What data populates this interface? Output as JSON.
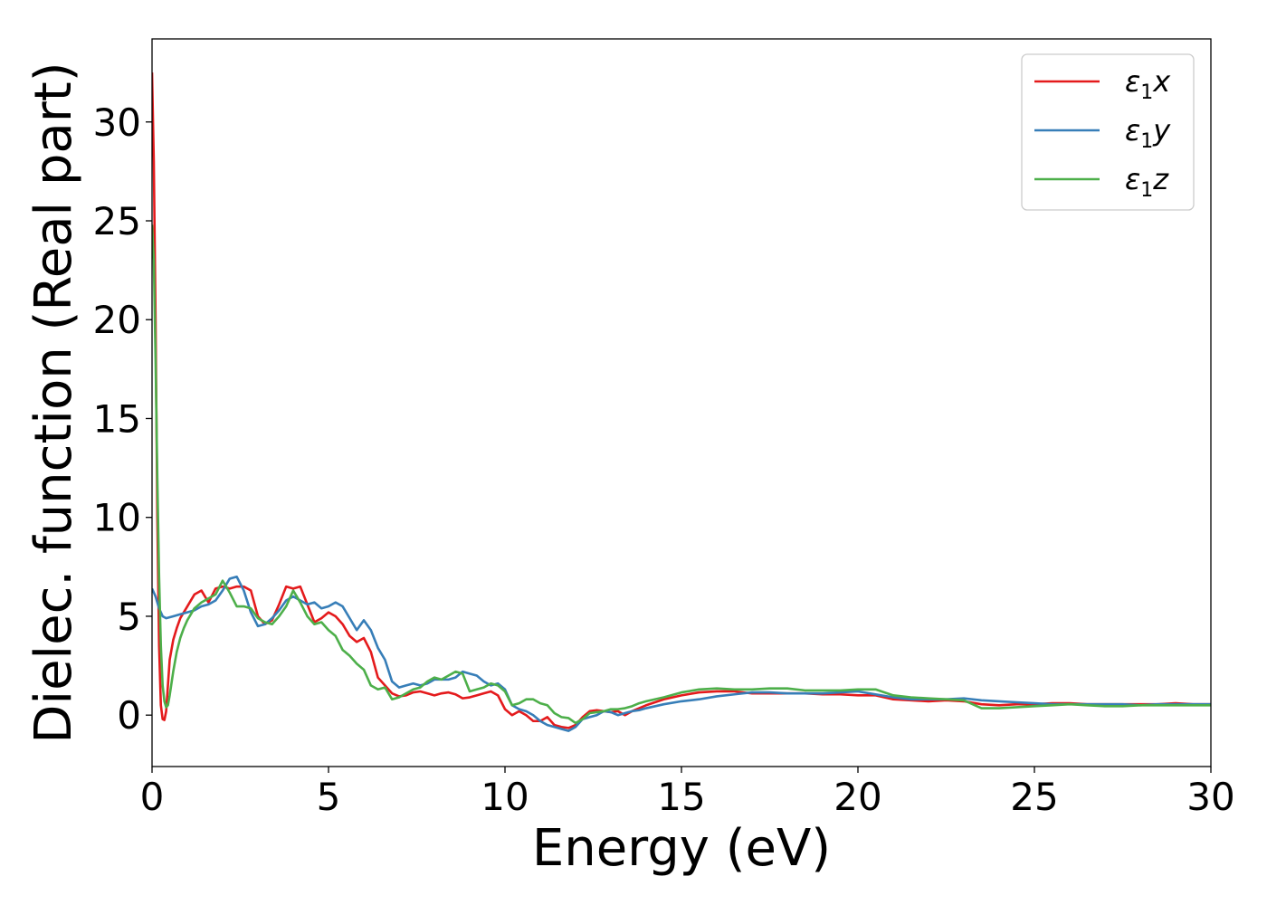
{
  "chart_data": {
    "type": "line",
    "title": "",
    "xlabel": "Energy (eV)",
    "ylabel": "Dielec. function (Real part)",
    "xlim": [
      0,
      30
    ],
    "ylim": [
      -2.6,
      34.2
    ],
    "xticks": [
      "0",
      "5",
      "10",
      "15",
      "20",
      "25",
      "30"
    ],
    "yticks": [
      "0",
      "5",
      "10",
      "15",
      "20",
      "25",
      "30"
    ],
    "grid": false,
    "legend_position": "upper-right",
    "series": [
      {
        "name": "ε₁x",
        "legend_main": "ε",
        "legend_sub": "1",
        "legend_var": "x",
        "color": "#e41a1c",
        "x": [
          0.0,
          0.05,
          0.1,
          0.15,
          0.2,
          0.25,
          0.3,
          0.35,
          0.4,
          0.45,
          0.5,
          0.6,
          0.7,
          0.8,
          0.9,
          1.0,
          1.2,
          1.4,
          1.6,
          1.8,
          2.0,
          2.2,
          2.4,
          2.6,
          2.8,
          3.0,
          3.2,
          3.4,
          3.6,
          3.8,
          4.0,
          4.2,
          4.4,
          4.6,
          4.8,
          5.0,
          5.2,
          5.4,
          5.6,
          5.8,
          6.0,
          6.2,
          6.4,
          6.6,
          6.8,
          7.0,
          7.2,
          7.4,
          7.6,
          7.8,
          8.0,
          8.2,
          8.4,
          8.6,
          8.8,
          9.0,
          9.2,
          9.4,
          9.6,
          9.8,
          10.0,
          10.2,
          10.4,
          10.6,
          10.8,
          11.0,
          11.2,
          11.4,
          11.6,
          11.8,
          12.0,
          12.2,
          12.4,
          12.6,
          12.8,
          13.0,
          13.2,
          13.4,
          13.6,
          13.8,
          14.0,
          14.5,
          15.0,
          15.5,
          16.0,
          16.5,
          17.0,
          17.5,
          18.0,
          18.5,
          19.0,
          19.5,
          20.0,
          20.5,
          21.0,
          21.5,
          22.0,
          22.5,
          23.0,
          23.5,
          24.0,
          24.5,
          25.0,
          25.5,
          26.0,
          26.5,
          27.0,
          27.5,
          28.0,
          28.5,
          29.0,
          29.5,
          30.0
        ],
        "y": [
          32.5,
          28.0,
          20.0,
          10.0,
          3.5,
          0.5,
          -0.2,
          -0.25,
          0.2,
          1.5,
          2.8,
          3.8,
          4.4,
          4.9,
          5.2,
          5.5,
          6.1,
          6.3,
          5.7,
          6.4,
          6.5,
          6.4,
          6.5,
          6.5,
          6.3,
          5.0,
          4.6,
          4.8,
          5.6,
          6.5,
          6.4,
          6.5,
          5.6,
          4.7,
          4.9,
          5.2,
          5.0,
          4.6,
          4.0,
          3.7,
          3.9,
          3.2,
          1.9,
          1.5,
          1.1,
          0.95,
          1.0,
          1.15,
          1.2,
          1.1,
          1.0,
          1.1,
          1.15,
          1.05,
          0.85,
          0.9,
          1.0,
          1.1,
          1.2,
          1.0,
          0.3,
          0.0,
          0.2,
          0.0,
          -0.3,
          -0.3,
          -0.1,
          -0.5,
          -0.6,
          -0.65,
          -0.5,
          -0.1,
          0.2,
          0.25,
          0.2,
          0.15,
          0.2,
          0.0,
          0.2,
          0.35,
          0.5,
          0.8,
          1.0,
          1.15,
          1.2,
          1.2,
          1.1,
          1.1,
          1.1,
          1.1,
          1.05,
          1.05,
          1.0,
          1.0,
          0.8,
          0.75,
          0.7,
          0.75,
          0.7,
          0.55,
          0.5,
          0.55,
          0.55,
          0.6,
          0.6,
          0.55,
          0.55,
          0.55,
          0.55,
          0.55,
          0.6,
          0.55,
          0.55
        ]
      },
      {
        "name": "ε₁y",
        "legend_main": "ε",
        "legend_sub": "1",
        "legend_var": "y",
        "color": "#377eb8",
        "x": [
          0.0,
          0.1,
          0.2,
          0.3,
          0.4,
          0.6,
          0.8,
          1.0,
          1.2,
          1.4,
          1.6,
          1.8,
          2.0,
          2.2,
          2.4,
          2.6,
          2.8,
          3.0,
          3.2,
          3.4,
          3.6,
          3.8,
          4.0,
          4.2,
          4.4,
          4.6,
          4.8,
          5.0,
          5.2,
          5.4,
          5.6,
          5.8,
          6.0,
          6.2,
          6.4,
          6.6,
          6.8,
          7.0,
          7.2,
          7.4,
          7.6,
          7.8,
          8.0,
          8.2,
          8.4,
          8.6,
          8.8,
          9.0,
          9.2,
          9.4,
          9.6,
          9.8,
          10.0,
          10.2,
          10.4,
          10.6,
          10.8,
          11.0,
          11.2,
          11.4,
          11.6,
          11.8,
          12.0,
          12.2,
          12.4,
          12.6,
          12.8,
          13.0,
          13.2,
          13.4,
          13.6,
          13.8,
          14.0,
          14.5,
          15.0,
          15.5,
          16.0,
          16.5,
          17.0,
          17.5,
          18.0,
          18.5,
          19.0,
          19.5,
          20.0,
          20.5,
          21.0,
          21.5,
          22.0,
          22.5,
          23.0,
          23.5,
          24.0,
          24.5,
          25.0,
          25.5,
          26.0,
          26.5,
          27.0,
          27.5,
          28.0,
          28.5,
          29.0,
          29.5,
          30.0
        ],
        "y": [
          6.4,
          6.0,
          5.4,
          5.0,
          4.9,
          5.0,
          5.1,
          5.2,
          5.3,
          5.5,
          5.6,
          5.8,
          6.3,
          6.9,
          7.0,
          6.3,
          5.2,
          4.5,
          4.6,
          4.9,
          5.3,
          5.8,
          6.0,
          5.8,
          5.6,
          5.7,
          5.4,
          5.5,
          5.7,
          5.5,
          4.9,
          4.3,
          4.8,
          4.3,
          3.4,
          2.8,
          1.7,
          1.4,
          1.5,
          1.6,
          1.5,
          1.6,
          1.8,
          1.8,
          1.8,
          1.9,
          2.2,
          2.1,
          2.0,
          1.7,
          1.5,
          1.6,
          1.3,
          0.5,
          0.3,
          0.2,
          0.0,
          -0.3,
          -0.5,
          -0.6,
          -0.7,
          -0.8,
          -0.6,
          -0.2,
          -0.1,
          0.0,
          0.2,
          0.15,
          0.0,
          0.1,
          0.2,
          0.25,
          0.35,
          0.55,
          0.7,
          0.8,
          0.95,
          1.05,
          1.15,
          1.15,
          1.1,
          1.1,
          1.1,
          1.15,
          1.2,
          1.05,
          0.9,
          0.8,
          0.8,
          0.8,
          0.85,
          0.75,
          0.7,
          0.65,
          0.6,
          0.55,
          0.55,
          0.55,
          0.55,
          0.55,
          0.5,
          0.55,
          0.55,
          0.55,
          0.55
        ]
      },
      {
        "name": "ε₁z",
        "legend_main": "ε",
        "legend_sub": "1",
        "legend_var": "z",
        "color": "#4daf4a",
        "x": [
          0.0,
          0.05,
          0.1,
          0.15,
          0.2,
          0.25,
          0.3,
          0.35,
          0.4,
          0.45,
          0.5,
          0.6,
          0.7,
          0.8,
          0.9,
          1.0,
          1.2,
          1.4,
          1.6,
          1.8,
          2.0,
          2.2,
          2.4,
          2.6,
          2.8,
          3.0,
          3.2,
          3.4,
          3.6,
          3.8,
          4.0,
          4.2,
          4.4,
          4.6,
          4.8,
          5.0,
          5.2,
          5.4,
          5.6,
          5.8,
          6.0,
          6.2,
          6.4,
          6.6,
          6.8,
          7.0,
          7.2,
          7.4,
          7.6,
          7.8,
          8.0,
          8.2,
          8.4,
          8.6,
          8.8,
          9.0,
          9.2,
          9.4,
          9.6,
          9.8,
          10.0,
          10.2,
          10.4,
          10.6,
          10.8,
          11.0,
          11.2,
          11.4,
          11.6,
          11.8,
          12.0,
          12.2,
          12.4,
          12.6,
          12.8,
          13.0,
          13.2,
          13.4,
          13.6,
          13.8,
          14.0,
          14.5,
          15.0,
          15.5,
          16.0,
          16.5,
          17.0,
          17.5,
          18.0,
          18.5,
          19.0,
          19.5,
          20.0,
          20.5,
          21.0,
          21.5,
          22.0,
          22.5,
          23.0,
          23.5,
          24.0,
          24.5,
          25.0,
          25.5,
          26.0,
          26.5,
          27.0,
          27.5,
          28.0,
          28.5,
          29.0,
          29.5,
          30.0
        ],
        "y": [
          24.8,
          23.0,
          18.0,
          12.0,
          7.0,
          3.5,
          1.5,
          0.7,
          0.4,
          0.5,
          1.0,
          2.2,
          3.2,
          3.9,
          4.4,
          4.8,
          5.4,
          5.7,
          5.9,
          6.1,
          6.8,
          6.2,
          5.5,
          5.5,
          5.4,
          4.9,
          4.7,
          4.6,
          5.0,
          5.5,
          6.3,
          5.7,
          5.0,
          4.6,
          4.7,
          4.3,
          4.0,
          3.3,
          3.0,
          2.6,
          2.3,
          1.5,
          1.3,
          1.4,
          0.8,
          0.9,
          1.1,
          1.3,
          1.4,
          1.7,
          1.9,
          1.8,
          2.0,
          2.2,
          2.1,
          1.2,
          1.3,
          1.4,
          1.6,
          1.5,
          1.2,
          0.5,
          0.6,
          0.8,
          0.8,
          0.6,
          0.5,
          0.1,
          -0.1,
          -0.15,
          -0.4,
          -0.2,
          0.1,
          0.15,
          0.2,
          0.3,
          0.3,
          0.35,
          0.45,
          0.6,
          0.7,
          0.9,
          1.15,
          1.3,
          1.35,
          1.3,
          1.3,
          1.35,
          1.35,
          1.25,
          1.25,
          1.25,
          1.3,
          1.3,
          1.0,
          0.9,
          0.85,
          0.8,
          0.75,
          0.35,
          0.35,
          0.4,
          0.45,
          0.5,
          0.55,
          0.5,
          0.45,
          0.45,
          0.5,
          0.5,
          0.5,
          0.5,
          0.5
        ]
      }
    ]
  }
}
